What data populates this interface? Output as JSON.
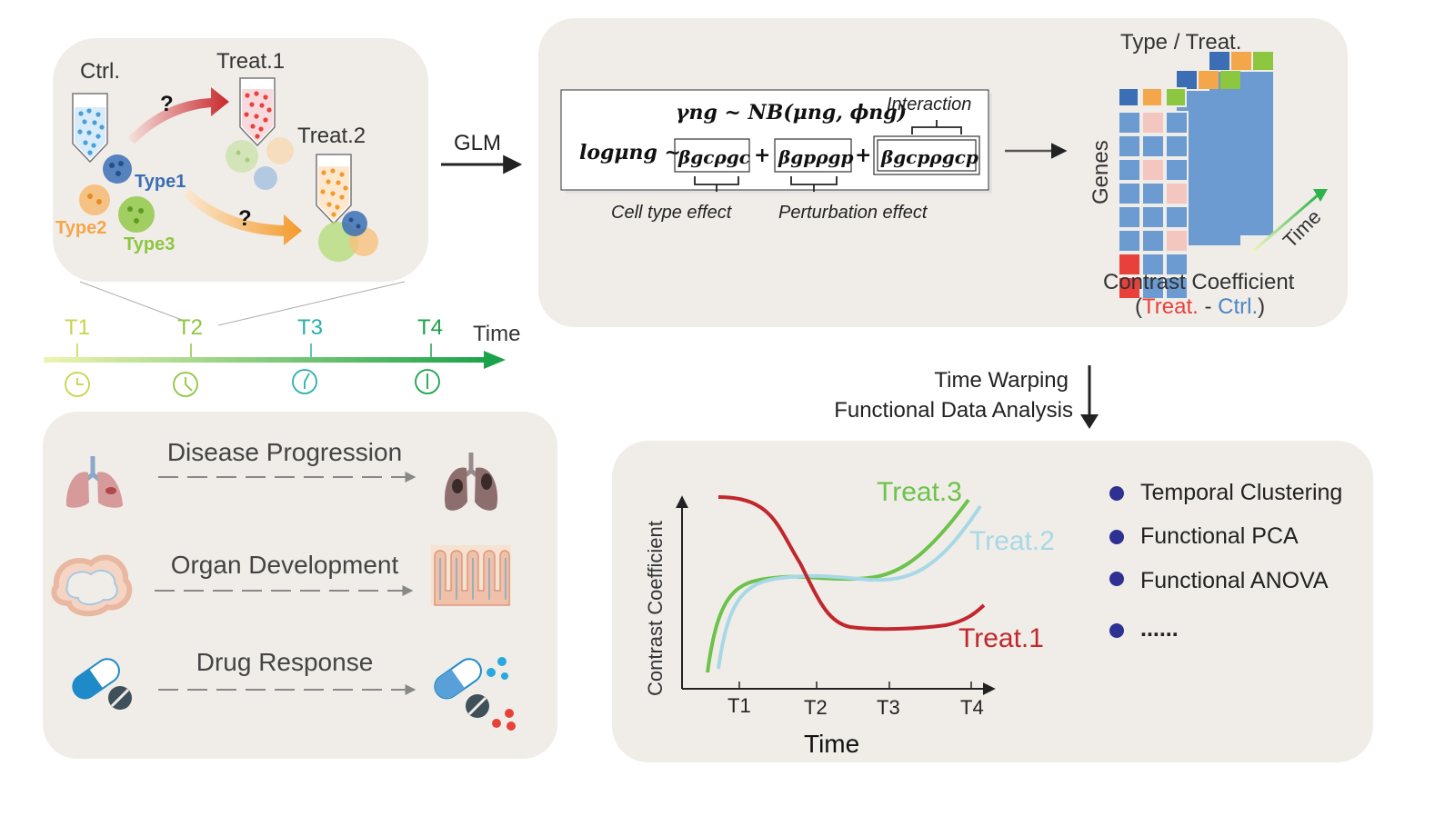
{
  "top_left_panel": {
    "ctrl_label": "Ctrl.",
    "treat1_label": "Treat.1",
    "treat2_label": "Treat.2",
    "question_mark": "?",
    "type1_label": "Type1",
    "type2_label": "Type2",
    "type3_label": "Type3"
  },
  "timeline": {
    "ticks": [
      "T1",
      "T2",
      "T3",
      "T4"
    ],
    "axis_label": "Time"
  },
  "glm_panel": {
    "arrow_label": "GLM",
    "formula_gamma": "γng ~ NB(μng, ϕng)",
    "formula_log": "logμng ~",
    "term_celltype": "βgcρgc",
    "term_perturbation": "βgpρgp",
    "term_interaction": "βgcpρgcp",
    "plus": "+",
    "interaction_label": "Interaction",
    "celltype_effect_label": "Cell type effect",
    "perturbation_effect_label": "Perturbation effect",
    "heatmap_top_label": "Type / Treat.",
    "heatmap_genes_label": "Genes",
    "heatmap_time_label": "Time",
    "contrast_title": "Contrast Coefficient",
    "contrast_open": "(",
    "contrast_treat": "Treat.",
    "contrast_minus": " - ",
    "contrast_ctrl": "Ctrl.",
    "contrast_close": ")"
  },
  "middle_arrow": {
    "line1": "Time Warping",
    "line2": "Functional Data Analysis"
  },
  "applications_panel": {
    "items": [
      {
        "label": "Disease Progression"
      },
      {
        "label": "Organ Development"
      },
      {
        "label": "Drug Response"
      }
    ]
  },
  "curve_panel": {
    "ylabel": "Contrast Coefficient",
    "xlabel": "Time",
    "ticks": [
      "T1",
      "T2",
      "T3",
      "T4"
    ],
    "series": [
      {
        "name": "Treat.3",
        "color": "#6cc24a"
      },
      {
        "name": "Treat.2",
        "color": "#a8d8e6"
      },
      {
        "name": "Treat.1",
        "color": "#c1272d"
      }
    ],
    "methods": [
      "Temporal Clustering",
      "Functional PCA",
      "Functional ANOVA",
      "......"
    ]
  },
  "colors": {
    "panel_bg": "#f0ede8",
    "treat_red": "#e8413c",
    "ctrl_blue": "#4a86c5",
    "type1": "#3b6eb5",
    "type2": "#f4a64a",
    "type3": "#8dc63f",
    "bullet": "#2e3192"
  }
}
